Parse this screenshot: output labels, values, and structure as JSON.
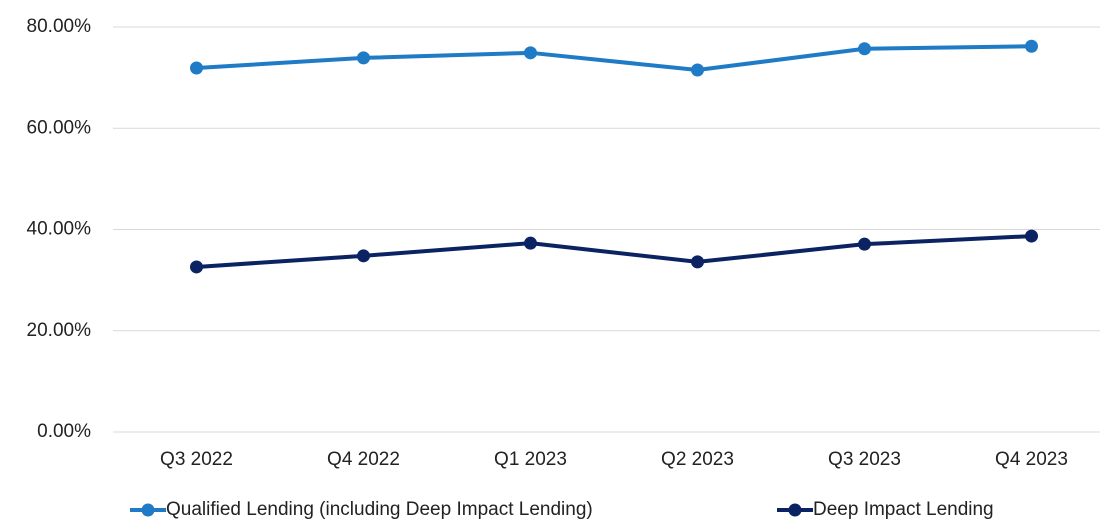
{
  "chart_data": {
    "type": "line",
    "categories": [
      "Q3 2022",
      "Q4 2022",
      "Q1 2023",
      "Q2 2023",
      "Q3 2023",
      "Q4 2023"
    ],
    "series": [
      {
        "name": "Qualified Lending (including Deep Impact Lending)",
        "color": "#1f7bc6",
        "values": [
          71.9,
          73.9,
          74.9,
          71.5,
          75.7,
          76.2
        ]
      },
      {
        "name": "Deep Impact Lending",
        "color": "#0b2362",
        "values": [
          32.6,
          34.8,
          37.3,
          33.6,
          37.1,
          38.7
        ]
      }
    ],
    "ylim": [
      0,
      80
    ],
    "yticks": [
      {
        "value": 0,
        "label": "0.00%"
      },
      {
        "value": 20,
        "label": "20.00%"
      },
      {
        "value": 40,
        "label": "40.00%"
      },
      {
        "value": 60,
        "label": "60.00%"
      },
      {
        "value": 80,
        "label": "80.00%"
      }
    ],
    "grid": true,
    "legend": "bottom"
  }
}
